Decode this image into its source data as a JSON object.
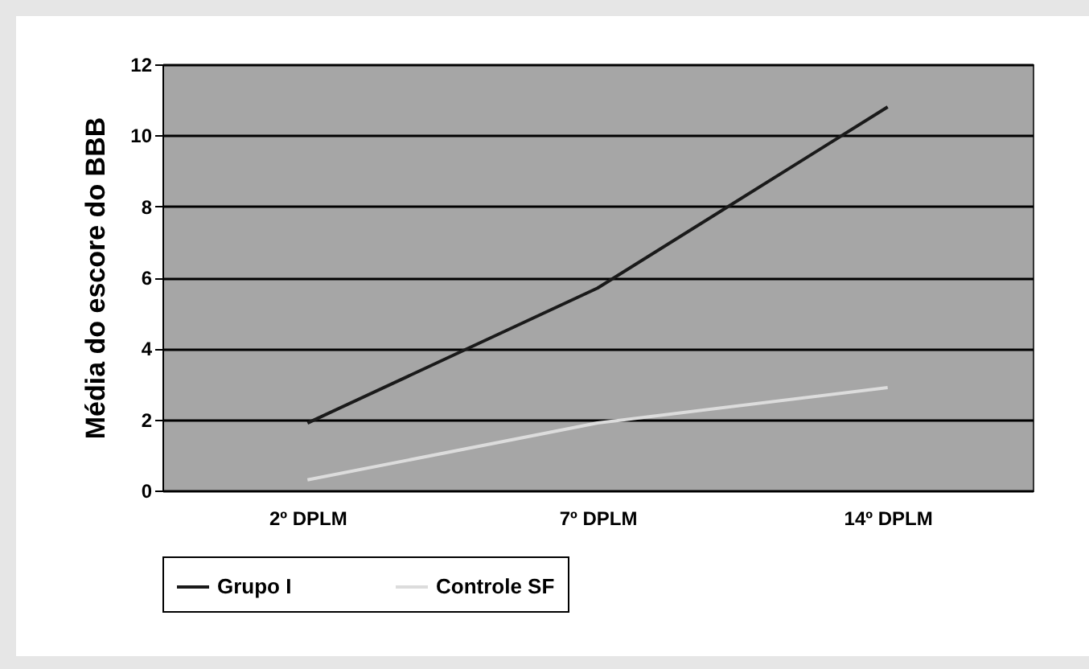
{
  "chart_data": {
    "type": "line",
    "ylabel": "Média do escore do BBB",
    "categories": [
      "2º DPLM",
      "7º DPLM",
      "14º DPLM"
    ],
    "series": [
      {
        "name": "Grupo I",
        "color": "#1a1a1a",
        "values": [
          1.9,
          5.7,
          10.8
        ]
      },
      {
        "name": "Controle SF",
        "color": "#dcdcdc",
        "values": [
          0.3,
          1.9,
          2.9
        ]
      }
    ],
    "ylim": [
      0,
      12
    ],
    "yticks": [
      0,
      2,
      4,
      6,
      8,
      10,
      12
    ],
    "grid": "y",
    "legend": "bottom",
    "marker": "none",
    "line_style": "solid"
  }
}
